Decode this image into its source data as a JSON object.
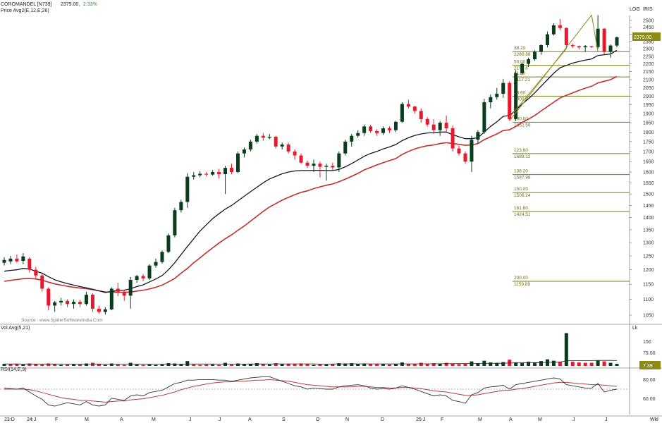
{
  "header": {
    "symbol": "COROMANDEL [N739]",
    "price": "2379.00,",
    "change": "2.33%",
    "indicator": "Price  Avg2(E,12,E,26)",
    "log_label": "LOG",
    "iris_label": "IRIS",
    "source": "Source : www.SpiderSoftwareIndia.Com"
  },
  "price_panel": {
    "yticks": [
      2500,
      2450,
      2400,
      2350,
      2300,
      2250,
      2200,
      2150,
      2100,
      2050,
      2000,
      1950,
      1900,
      1850,
      1800,
      1750,
      1700,
      1650,
      1600,
      1550,
      1500,
      1450,
      1400,
      1350,
      1300,
      1250,
      1200,
      1150,
      1100,
      1050
    ],
    "price_badge": "2379.00"
  },
  "fib": {
    "upper": [
      {
        "pct": "38.20",
        "value": "2280.68"
      },
      {
        "pct": "50.00",
        "value": "2190.6"
      },
      {
        "pct": "61.80",
        "value": "2117.21"
      },
      {
        "pct": "78.60",
        "value": "2000.8"
      },
      {
        "pct": "100.00",
        "value": "1852.59"
      }
    ],
    "lower": [
      {
        "pct": "123.60",
        "value": "1689.12"
      },
      {
        "pct": "138.20",
        "value": "1587.98"
      },
      {
        "pct": "150.00",
        "value": "1506.24"
      },
      {
        "pct": "161.80",
        "value": "1424.51"
      },
      {
        "pct": "200.00",
        "value": "1159.89"
      }
    ]
  },
  "volume_panel": {
    "label": "Vol  Avg(5,21)",
    "unit": "Lk",
    "yticks": [
      "150",
      "75.00"
    ],
    "badge": "7.39"
  },
  "rsi_panel": {
    "label": "RSI(14,E,9)",
    "yticks": [
      "80.00",
      "60.00"
    ]
  },
  "xaxis": {
    "labels": [
      "23:D",
      "24:J",
      "F",
      "M",
      "A",
      "M",
      "J",
      "J",
      "A",
      "S",
      "O",
      "N",
      "D",
      "25:J",
      "F",
      "M",
      "A",
      "M",
      "J",
      "J"
    ],
    "wk_label": "Wkl"
  },
  "colors": {
    "up": "#0a3d1c",
    "down": "#e8192c",
    "ema_fast": "#15152f",
    "ema_slow": "#c0302b",
    "fib_line": "#7a7a1a",
    "grid_text": "#333333"
  },
  "chart_data": {
    "type": "candlestick",
    "interval": "weekly",
    "candles": [
      [
        1225,
        1245,
        1215,
        1235
      ],
      [
        1230,
        1250,
        1220,
        1240
      ],
      [
        1240,
        1255,
        1225,
        1230
      ],
      [
        1232,
        1260,
        1220,
        1248
      ],
      [
        1240,
        1245,
        1190,
        1200
      ],
      [
        1200,
        1210,
        1170,
        1180
      ],
      [
        1180,
        1185,
        1125,
        1135
      ],
      [
        1135,
        1140,
        1065,
        1080
      ],
      [
        1080,
        1095,
        1060,
        1090
      ],
      [
        1090,
        1105,
        1080,
        1095
      ],
      [
        1095,
        1100,
        1075,
        1085
      ],
      [
        1085,
        1100,
        1070,
        1092
      ],
      [
        1092,
        1098,
        1075,
        1085
      ],
      [
        1085,
        1125,
        1080,
        1115
      ],
      [
        1115,
        1120,
        1060,
        1070
      ],
      [
        1070,
        1080,
        1055,
        1060
      ],
      [
        1060,
        1075,
        1052,
        1068
      ],
      [
        1068,
        1140,
        1065,
        1135
      ],
      [
        1135,
        1155,
        1110,
        1125
      ],
      [
        1125,
        1130,
        1095,
        1112
      ],
      [
        1112,
        1175,
        1070,
        1165
      ],
      [
        1165,
        1182,
        1155,
        1178
      ],
      [
        1178,
        1185,
        1160,
        1170
      ],
      [
        1170,
        1220,
        1165,
        1215
      ],
      [
        1215,
        1240,
        1208,
        1228
      ],
      [
        1228,
        1270,
        1222,
        1265
      ],
      [
        1265,
        1335,
        1260,
        1328
      ],
      [
        1328,
        1440,
        1320,
        1430
      ],
      [
        1430,
        1475,
        1420,
        1465
      ],
      [
        1465,
        1595,
        1440,
        1578
      ],
      [
        1578,
        1600,
        1565,
        1585
      ],
      [
        1585,
        1605,
        1575,
        1592
      ],
      [
        1592,
        1600,
        1580,
        1588
      ],
      [
        1588,
        1610,
        1583,
        1600
      ],
      [
        1600,
        1615,
        1570,
        1590
      ],
      [
        1590,
        1630,
        1500,
        1620
      ],
      [
        1620,
        1640,
        1590,
        1600
      ],
      [
        1600,
        1700,
        1595,
        1690
      ],
      [
        1690,
        1720,
        1670,
        1710
      ],
      [
        1710,
        1760,
        1700,
        1750
      ],
      [
        1750,
        1790,
        1740,
        1780
      ],
      [
        1780,
        1795,
        1755,
        1770
      ],
      [
        1770,
        1790,
        1762,
        1775
      ],
      [
        1775,
        1780,
        1715,
        1725
      ],
      [
        1725,
        1745,
        1710,
        1735
      ],
      [
        1735,
        1745,
        1690,
        1700
      ],
      [
        1700,
        1710,
        1660,
        1680
      ],
      [
        1680,
        1690,
        1640,
        1645
      ],
      [
        1645,
        1655,
        1620,
        1630
      ],
      [
        1630,
        1660,
        1600,
        1640
      ],
      [
        1640,
        1650,
        1575,
        1625
      ],
      [
        1625,
        1640,
        1560,
        1630
      ],
      [
        1630,
        1645,
        1610,
        1622
      ],
      [
        1622,
        1700,
        1600,
        1690
      ],
      [
        1690,
        1760,
        1680,
        1750
      ],
      [
        1750,
        1790,
        1725,
        1780
      ],
      [
        1780,
        1810,
        1770,
        1795
      ],
      [
        1795,
        1840,
        1780,
        1830
      ],
      [
        1830,
        1840,
        1795,
        1805
      ],
      [
        1805,
        1815,
        1780,
        1795
      ],
      [
        1795,
        1830,
        1785,
        1820
      ],
      [
        1820,
        1830,
        1795,
        1810
      ],
      [
        1810,
        1860,
        1800,
        1855
      ],
      [
        1855,
        1965,
        1850,
        1955
      ],
      [
        1955,
        1980,
        1930,
        1940
      ],
      [
        1940,
        1945,
        1900,
        1915
      ],
      [
        1915,
        1930,
        1850,
        1870
      ],
      [
        1870,
        1880,
        1830,
        1840
      ],
      [
        1840,
        1870,
        1790,
        1810
      ],
      [
        1810,
        1860,
        1780,
        1850
      ],
      [
        1850,
        1890,
        1800,
        1820
      ],
      [
        1820,
        1835,
        1700,
        1715
      ],
      [
        1715,
        1730,
        1680,
        1690
      ],
      [
        1690,
        1700,
        1640,
        1650
      ],
      [
        1650,
        1780,
        1600,
        1760
      ],
      [
        1760,
        1810,
        1740,
        1800
      ],
      [
        1800,
        1985,
        1790,
        1965
      ],
      [
        1965,
        2010,
        1930,
        1995
      ],
      [
        1995,
        2050,
        1980,
        2015
      ],
      [
        2015,
        2105,
        1990,
        2080
      ],
      [
        2080,
        2090,
        1860,
        1870
      ],
      [
        1870,
        2160,
        1860,
        2140
      ],
      [
        2140,
        2210,
        2130,
        2200
      ],
      [
        2200,
        2240,
        2180,
        2230
      ],
      [
        2230,
        2290,
        2220,
        2280
      ],
      [
        2280,
        2330,
        2260,
        2325
      ],
      [
        2325,
        2420,
        2310,
        2400
      ],
      [
        2400,
        2480,
        2390,
        2465
      ],
      [
        2465,
        2510,
        2430,
        2445
      ],
      [
        2445,
        2450,
        2300,
        2325
      ],
      [
        2325,
        2335,
        2305,
        2318
      ],
      [
        2318,
        2322,
        2295,
        2310
      ],
      [
        2310,
        2325,
        2280,
        2318
      ],
      [
        2318,
        2320,
        2305,
        2312
      ],
      [
        2312,
        2540,
        2300,
        2440
      ],
      [
        2440,
        2445,
        2260,
        2280
      ],
      [
        2280,
        2330,
        2240,
        2322
      ],
      [
        2322,
        2385,
        2310,
        2379
      ]
    ],
    "ema_fast": [
      1195,
      1198,
      1200,
      1205,
      1203,
      1195,
      1188,
      1176,
      1165,
      1158,
      1152,
      1147,
      1142,
      1138,
      1133,
      1128,
      1122,
      1126,
      1129,
      1130,
      1135,
      1142,
      1148,
      1158,
      1168,
      1180,
      1200,
      1225,
      1255,
      1285,
      1315,
      1345,
      1370,
      1395,
      1415,
      1435,
      1450,
      1470,
      1490,
      1510,
      1530,
      1550,
      1568,
      1580,
      1592,
      1600,
      1605,
      1607,
      1607,
      1608,
      1608,
      1607,
      1607,
      1612,
      1625,
      1640,
      1658,
      1676,
      1690,
      1700,
      1713,
      1723,
      1735,
      1755,
      1770,
      1782,
      1790,
      1795,
      1797,
      1800,
      1800,
      1786,
      1775,
      1765,
      1765,
      1770,
      1800,
      1830,
      1855,
      1885,
      1890,
      1920,
      1955,
      1985,
      2020,
      2060,
      2100,
      2140,
      2175,
      2190,
      2205,
      2215,
      2225,
      2232,
      2255,
      2260,
      2265,
      2290
    ],
    "ema_slow": [
      1160,
      1163,
      1166,
      1169,
      1170,
      1168,
      1164,
      1157,
      1151,
      1147,
      1143,
      1140,
      1137,
      1135,
      1132,
      1128,
      1124,
      1124,
      1123,
      1123,
      1124,
      1127,
      1130,
      1134,
      1140,
      1147,
      1158,
      1170,
      1188,
      1205,
      1225,
      1243,
      1262,
      1280,
      1298,
      1315,
      1330,
      1348,
      1365,
      1385,
      1405,
      1425,
      1444,
      1458,
      1473,
      1485,
      1497,
      1507,
      1514,
      1524,
      1532,
      1539,
      1545,
      1555,
      1567,
      1580,
      1594,
      1610,
      1622,
      1634,
      1645,
      1655,
      1665,
      1685,
      1700,
      1713,
      1722,
      1729,
      1733,
      1740,
      1744,
      1740,
      1736,
      1731,
      1733,
      1740,
      1760,
      1775,
      1790,
      1808,
      1812,
      1830,
      1852,
      1870,
      1890,
      1915,
      1940,
      1965,
      1990,
      2005,
      2020,
      2035,
      2048,
      2060,
      2080,
      2090,
      2100,
      2120
    ],
    "volume": [
      [
        6,
        0
      ],
      [
        5,
        1
      ],
      [
        6,
        1
      ],
      [
        4,
        0
      ],
      [
        7,
        1
      ],
      [
        5,
        1
      ],
      [
        4,
        1
      ],
      [
        7,
        1
      ],
      [
        6,
        1
      ],
      [
        3,
        0
      ],
      [
        4,
        1
      ],
      [
        5,
        0
      ],
      [
        4,
        1
      ],
      [
        7,
        0
      ],
      [
        9,
        1
      ],
      [
        5,
        1
      ],
      [
        3,
        0
      ],
      [
        7,
        0
      ],
      [
        4,
        1
      ],
      [
        3,
        1
      ],
      [
        9,
        0
      ],
      [
        4,
        0
      ],
      [
        3,
        1
      ],
      [
        4,
        0
      ],
      [
        3,
        0
      ],
      [
        5,
        0
      ],
      [
        8,
        0
      ],
      [
        7,
        0
      ],
      [
        5,
        0
      ],
      [
        14,
        0
      ],
      [
        4,
        1
      ],
      [
        3,
        1
      ],
      [
        4,
        1
      ],
      [
        4,
        0
      ],
      [
        3,
        1
      ],
      [
        9,
        0
      ],
      [
        4,
        1
      ],
      [
        7,
        0
      ],
      [
        5,
        0
      ],
      [
        6,
        0
      ],
      [
        8,
        0
      ],
      [
        6,
        1
      ],
      [
        4,
        0
      ],
      [
        8,
        1
      ],
      [
        5,
        0
      ],
      [
        6,
        1
      ],
      [
        5,
        1
      ],
      [
        7,
        1
      ],
      [
        6,
        1
      ],
      [
        3,
        0
      ],
      [
        5,
        1
      ],
      [
        4,
        0
      ],
      [
        6,
        1
      ],
      [
        8,
        0
      ],
      [
        7,
        0
      ],
      [
        8,
        0
      ],
      [
        6,
        0
      ],
      [
        7,
        0
      ],
      [
        6,
        1
      ],
      [
        5,
        1
      ],
      [
        5,
        0
      ],
      [
        4,
        1
      ],
      [
        6,
        0
      ],
      [
        10,
        0
      ],
      [
        6,
        1
      ],
      [
        5,
        1
      ],
      [
        9,
        1
      ],
      [
        6,
        1
      ],
      [
        8,
        1
      ],
      [
        7,
        0
      ],
      [
        9,
        1
      ],
      [
        7,
        1
      ],
      [
        5,
        1
      ],
      [
        6,
        1
      ],
      [
        13,
        0
      ],
      [
        8,
        0
      ],
      [
        15,
        0
      ],
      [
        10,
        0
      ],
      [
        9,
        0
      ],
      [
        11,
        0
      ],
      [
        18,
        1
      ],
      [
        10,
        0
      ],
      [
        9,
        0
      ],
      [
        12,
        0
      ],
      [
        10,
        0
      ],
      [
        14,
        0
      ],
      [
        19,
        0
      ],
      [
        15,
        0
      ],
      [
        12,
        1
      ],
      [
        95,
        0
      ],
      [
        12,
        1
      ],
      [
        10,
        1
      ],
      [
        9,
        1
      ],
      [
        9,
        1
      ],
      [
        15,
        0
      ],
      [
        13,
        1
      ],
      [
        9,
        0
      ],
      [
        6,
        0
      ]
    ],
    "rsi": [
      72,
      71,
      70,
      72,
      65,
      58,
      52,
      42,
      40,
      43,
      46,
      44,
      42,
      48,
      42,
      40,
      42,
      54,
      52,
      50,
      58,
      60,
      58,
      64,
      66,
      68,
      74,
      80,
      82,
      86,
      86,
      87,
      87,
      87,
      86,
      86,
      84,
      86,
      88,
      90,
      91,
      92,
      92,
      88,
      84,
      80,
      76,
      74,
      70,
      72,
      71,
      70,
      70,
      74,
      76,
      77,
      78,
      76,
      72,
      70,
      71,
      70,
      72,
      76,
      73,
      70,
      66,
      62,
      58,
      60,
      58,
      50,
      48,
      45,
      60,
      64,
      72,
      74,
      75,
      77,
      70,
      78,
      80,
      82,
      84,
      86,
      88,
      90,
      88,
      78,
      76,
      74,
      72,
      72,
      80,
      65,
      68,
      70
    ],
    "rsi_avg": [
      70,
      70,
      70,
      70,
      69,
      67,
      64,
      61,
      58,
      55,
      53,
      52,
      50,
      50,
      49,
      48,
      47,
      48,
      49,
      49,
      51,
      52,
      53,
      55,
      57,
      59,
      62,
      65,
      69,
      72,
      75,
      77,
      79,
      81,
      82,
      83,
      83,
      84,
      84,
      85,
      86,
      86,
      87,
      86,
      85,
      84,
      82,
      80,
      78,
      77,
      76,
      75,
      74,
      74,
      74,
      74,
      75,
      75,
      74,
      73,
      73,
      72,
      72,
      73,
      73,
      72,
      71,
      69,
      67,
      66,
      65,
      63,
      61,
      59,
      59,
      60,
      62,
      64,
      66,
      68,
      68,
      70,
      71,
      73,
      75,
      77,
      79,
      81,
      82,
      82,
      81,
      80,
      79,
      78,
      78,
      77,
      76,
      75
    ],
    "rsi_reference": 70
  }
}
